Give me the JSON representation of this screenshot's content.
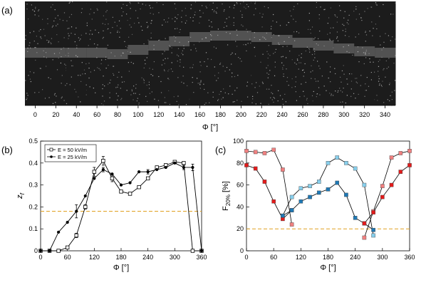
{
  "panels": {
    "a": "(a)",
    "b": "(b)",
    "c": "(c)"
  },
  "chart_data": [
    {
      "type": "image-strip",
      "panel": "(a)",
      "xlabel": "Φ [°]",
      "x_ticks": [
        0,
        20,
        40,
        60,
        80,
        100,
        120,
        140,
        160,
        180,
        200,
        220,
        240,
        260,
        280,
        300,
        320,
        340
      ],
      "colors": {
        "background": "#1c1c1c",
        "particles": "#d0d0d0"
      }
    },
    {
      "type": "line",
      "panel": "(b)",
      "ylabel": "z",
      "ylabel_sub": "f",
      "xlabel": "Φ [°]",
      "xlim": [
        0,
        360
      ],
      "ylim": [
        0,
        0.5
      ],
      "x_ticks": [
        0,
        60,
        120,
        180,
        240,
        300,
        360
      ],
      "y_ticks": [
        0,
        0.1,
        0.2,
        0.3,
        0.4,
        0.5
      ],
      "reference_line": {
        "y": 0.18,
        "color": "#e0a020"
      },
      "legend_position": "top-left",
      "series": [
        {
          "name": "E = 50 kV/m",
          "marker": "square-open",
          "x": [
            0,
            20,
            40,
            60,
            80,
            100,
            120,
            140,
            160,
            180,
            200,
            220,
            240,
            260,
            280,
            300,
            320,
            340,
            360
          ],
          "y": [
            0,
            0,
            0,
            0.015,
            0.07,
            0.2,
            0.36,
            0.41,
            0.33,
            0.27,
            0.26,
            0.29,
            0.33,
            0.38,
            0.39,
            0.405,
            0.4,
            0,
            0
          ],
          "error": [
            0,
            0,
            0,
            0,
            0.01,
            0.01,
            0.02,
            0.02,
            0.015,
            0,
            0,
            0,
            0,
            0,
            0,
            0,
            0,
            0,
            0
          ]
        },
        {
          "name": "E = 25 kV/m",
          "marker": "circle-filled",
          "x": [
            0,
            20,
            40,
            60,
            80,
            100,
            120,
            140,
            160,
            180,
            200,
            220,
            240,
            260,
            280,
            300,
            320,
            340,
            360
          ],
          "y": [
            0,
            0,
            0.085,
            0.13,
            0.18,
            0.25,
            0.33,
            0.37,
            0.35,
            0.3,
            0.31,
            0.36,
            0.36,
            0.37,
            0.38,
            0.4,
            0.38,
            0.38,
            0
          ],
          "error": [
            0,
            0,
            0,
            0,
            0.03,
            0,
            0,
            0.01,
            0,
            0,
            0,
            0,
            0.01,
            0,
            0,
            0,
            0.01,
            0.015,
            0
          ]
        }
      ]
    },
    {
      "type": "line",
      "panel": "(c)",
      "ylabel": "F",
      "ylabel_sub": "20%",
      "ylabel_unit": " [%]",
      "xlabel": "Φ [°]",
      "xlim": [
        0,
        360
      ],
      "ylim": [
        0,
        100
      ],
      "x_ticks": [
        0,
        60,
        120,
        180,
        240,
        300,
        360
      ],
      "y_ticks": [
        0,
        20,
        40,
        60,
        80,
        100
      ],
      "reference_line": {
        "y": 20,
        "color": "#e0a020"
      },
      "series": [
        {
          "color": "#f08080",
          "marker": "square",
          "x": [
            0,
            20,
            40,
            60,
            80,
            100
          ],
          "y": [
            91,
            90,
            89,
            92,
            74,
            24
          ]
        },
        {
          "color": "#e21b1b",
          "marker": "square",
          "x": [
            0,
            20,
            40,
            60,
            80,
            100
          ],
          "y": [
            78,
            75,
            63,
            45,
            29,
            37
          ]
        },
        {
          "color": "#87ceeb",
          "marker": "square",
          "x": [
            80,
            100,
            120,
            140,
            160,
            180,
            200,
            220,
            240,
            260,
            280
          ],
          "y": [
            32,
            49,
            57,
            59,
            63,
            80,
            85,
            80,
            75,
            60,
            14
          ]
        },
        {
          "color": "#1f78b4",
          "marker": "square",
          "x": [
            80,
            100,
            120,
            140,
            160,
            180,
            200,
            220,
            240,
            260,
            280
          ],
          "y": [
            32,
            37,
            45,
            49,
            53,
            56,
            62,
            51,
            30,
            25,
            19
          ]
        },
        {
          "color": "#f08080",
          "marker": "square",
          "x": [
            260,
            280,
            300,
            320,
            340,
            360
          ],
          "y": [
            12,
            36,
            59,
            85,
            89,
            91
          ]
        },
        {
          "color": "#e21b1b",
          "marker": "square",
          "x": [
            260,
            280,
            300,
            320,
            340,
            360
          ],
          "y": [
            25,
            35,
            49,
            60,
            72,
            78
          ]
        }
      ]
    }
  ]
}
